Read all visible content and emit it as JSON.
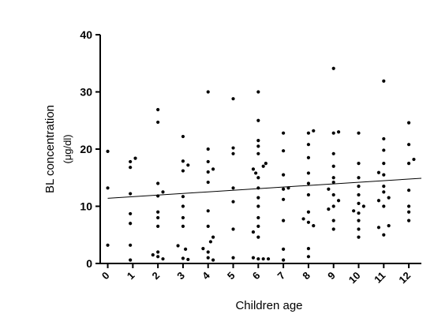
{
  "chart_data": {
    "type": "scatter",
    "title": "",
    "xlabel": "Children age",
    "ylabel": "BL concentration",
    "ylabel_unit": "(μg/dl)",
    "xlim": [
      -0.3,
      12.5
    ],
    "ylim": [
      0,
      40
    ],
    "x_ticks": [
      0,
      1,
      2,
      3,
      4,
      5,
      6,
      7,
      8,
      9,
      10,
      11,
      12
    ],
    "y_ticks": [
      0,
      10,
      20,
      30,
      40
    ],
    "grid": false,
    "legend": "none",
    "colors": {
      "points": "#000000",
      "line": "#000000",
      "axes": "#000000"
    },
    "trendline": {
      "x": [
        0,
        12.5
      ],
      "y": [
        11.4,
        14.9
      ]
    },
    "points": [
      {
        "x": 0,
        "y": 19.6
      },
      {
        "x": 0,
        "y": 13.2
      },
      {
        "x": 0,
        "y": 3.2
      },
      {
        "x": 0.9,
        "y": 17.8
      },
      {
        "x": 0.9,
        "y": 16.8
      },
      {
        "x": 1.1,
        "y": 18.4
      },
      {
        "x": 0.9,
        "y": 12.2
      },
      {
        "x": 0.9,
        "y": 8.7
      },
      {
        "x": 0.9,
        "y": 7.0
      },
      {
        "x": 0.9,
        "y": 3.2
      },
      {
        "x": 0.9,
        "y": 0.6
      },
      {
        "x": 2.0,
        "y": 26.9
      },
      {
        "x": 2.0,
        "y": 24.7
      },
      {
        "x": 2.0,
        "y": 14.0
      },
      {
        "x": 2.2,
        "y": 12.5
      },
      {
        "x": 2.0,
        "y": 11.8
      },
      {
        "x": 2.0,
        "y": 9.0
      },
      {
        "x": 2.0,
        "y": 8.0
      },
      {
        "x": 2.0,
        "y": 6.5
      },
      {
        "x": 2.0,
        "y": 2.0
      },
      {
        "x": 2.0,
        "y": 1.2
      },
      {
        "x": 1.8,
        "y": 1.5
      },
      {
        "x": 2.2,
        "y": 0.8
      },
      {
        "x": 3.0,
        "y": 22.2
      },
      {
        "x": 3.0,
        "y": 17.9
      },
      {
        "x": 3.0,
        "y": 16.2
      },
      {
        "x": 3.2,
        "y": 17.2
      },
      {
        "x": 3.0,
        "y": 11.7
      },
      {
        "x": 3.0,
        "y": 10.0
      },
      {
        "x": 3.0,
        "y": 8.0
      },
      {
        "x": 3.0,
        "y": 6.5
      },
      {
        "x": 2.8,
        "y": 3.1
      },
      {
        "x": 3.1,
        "y": 2.5
      },
      {
        "x": 3.0,
        "y": 0.9
      },
      {
        "x": 3.2,
        "y": 0.7
      },
      {
        "x": 4.0,
        "y": 30.0
      },
      {
        "x": 4.0,
        "y": 20.0
      },
      {
        "x": 4.0,
        "y": 17.8
      },
      {
        "x": 4.2,
        "y": 16.5
      },
      {
        "x": 4.0,
        "y": 16.0
      },
      {
        "x": 4.0,
        "y": 14.2
      },
      {
        "x": 4.0,
        "y": 9.2
      },
      {
        "x": 4.0,
        "y": 6.5
      },
      {
        "x": 3.8,
        "y": 2.6
      },
      {
        "x": 4.0,
        "y": 2.0
      },
      {
        "x": 4.1,
        "y": 3.8
      },
      {
        "x": 4.2,
        "y": 4.6
      },
      {
        "x": 4.0,
        "y": 1.0
      },
      {
        "x": 4.2,
        "y": 0.6
      },
      {
        "x": 5.0,
        "y": 28.8
      },
      {
        "x": 5.0,
        "y": 20.2
      },
      {
        "x": 5.0,
        "y": 19.2
      },
      {
        "x": 5.0,
        "y": 13.2
      },
      {
        "x": 5.0,
        "y": 10.8
      },
      {
        "x": 5.0,
        "y": 6.0
      },
      {
        "x": 5.0,
        "y": 1.0
      },
      {
        "x": 6.0,
        "y": 30.0
      },
      {
        "x": 6.0,
        "y": 25.0
      },
      {
        "x": 6.0,
        "y": 21.5
      },
      {
        "x": 6.0,
        "y": 20.5
      },
      {
        "x": 6.0,
        "y": 19.2
      },
      {
        "x": 6.3,
        "y": 17.5
      },
      {
        "x": 6.2,
        "y": 17.0
      },
      {
        "x": 5.8,
        "y": 16.5
      },
      {
        "x": 5.9,
        "y": 15.8
      },
      {
        "x": 6.0,
        "y": 15.0
      },
      {
        "x": 6.0,
        "y": 13.2
      },
      {
        "x": 6.0,
        "y": 11.5
      },
      {
        "x": 6.0,
        "y": 10.0
      },
      {
        "x": 6.0,
        "y": 8.0
      },
      {
        "x": 6.0,
        "y": 6.5
      },
      {
        "x": 5.8,
        "y": 5.5
      },
      {
        "x": 6.0,
        "y": 4.6
      },
      {
        "x": 5.8,
        "y": 1.0
      },
      {
        "x": 6.0,
        "y": 0.8
      },
      {
        "x": 6.2,
        "y": 0.8
      },
      {
        "x": 6.4,
        "y": 0.8
      },
      {
        "x": 7.0,
        "y": 22.8
      },
      {
        "x": 7.0,
        "y": 19.7
      },
      {
        "x": 7.0,
        "y": 15.5
      },
      {
        "x": 7.0,
        "y": 13.0
      },
      {
        "x": 7.2,
        "y": 13.2
      },
      {
        "x": 7.0,
        "y": 11.2
      },
      {
        "x": 7.0,
        "y": 7.5
      },
      {
        "x": 7.0,
        "y": 2.5
      },
      {
        "x": 7.0,
        "y": 0.6
      },
      {
        "x": 8.0,
        "y": 22.8
      },
      {
        "x": 8.2,
        "y": 23.2
      },
      {
        "x": 8.0,
        "y": 20.8
      },
      {
        "x": 8.0,
        "y": 18.5
      },
      {
        "x": 8.0,
        "y": 15.8
      },
      {
        "x": 8.0,
        "y": 14.0
      },
      {
        "x": 8.0,
        "y": 12.0
      },
      {
        "x": 8.0,
        "y": 9.0
      },
      {
        "x": 7.8,
        "y": 7.8
      },
      {
        "x": 8.0,
        "y": 7.2
      },
      {
        "x": 8.2,
        "y": 6.6
      },
      {
        "x": 8.0,
        "y": 2.6
      },
      {
        "x": 8.0,
        "y": 1.2
      },
      {
        "x": 9.0,
        "y": 34.1
      },
      {
        "x": 9.0,
        "y": 22.8
      },
      {
        "x": 9.2,
        "y": 23.0
      },
      {
        "x": 9.0,
        "y": 19.2
      },
      {
        "x": 9.0,
        "y": 17.0
      },
      {
        "x": 9.0,
        "y": 15.0
      },
      {
        "x": 9.0,
        "y": 14.2
      },
      {
        "x": 8.8,
        "y": 13.0
      },
      {
        "x": 9.0,
        "y": 12.0
      },
      {
        "x": 9.2,
        "y": 11.0
      },
      {
        "x": 9.0,
        "y": 10.0
      },
      {
        "x": 8.8,
        "y": 9.5
      },
      {
        "x": 9.0,
        "y": 7.5
      },
      {
        "x": 9.0,
        "y": 6.0
      },
      {
        "x": 10.0,
        "y": 22.8
      },
      {
        "x": 10.0,
        "y": 17.5
      },
      {
        "x": 10.0,
        "y": 15.0
      },
      {
        "x": 10.0,
        "y": 13.5
      },
      {
        "x": 10.0,
        "y": 12.0
      },
      {
        "x": 10.0,
        "y": 10.5
      },
      {
        "x": 10.2,
        "y": 10.0
      },
      {
        "x": 9.8,
        "y": 9.2
      },
      {
        "x": 10.0,
        "y": 8.8
      },
      {
        "x": 10.0,
        "y": 7.5
      },
      {
        "x": 10.0,
        "y": 6.0
      },
      {
        "x": 10.0,
        "y": 4.6
      },
      {
        "x": 11.0,
        "y": 31.9
      },
      {
        "x": 11.0,
        "y": 21.8
      },
      {
        "x": 11.0,
        "y": 19.8
      },
      {
        "x": 11.0,
        "y": 17.5
      },
      {
        "x": 10.8,
        "y": 15.9
      },
      {
        "x": 11.0,
        "y": 15.5
      },
      {
        "x": 11.0,
        "y": 13.5
      },
      {
        "x": 11.0,
        "y": 12.5
      },
      {
        "x": 11.2,
        "y": 11.5
      },
      {
        "x": 10.8,
        "y": 11.0
      },
      {
        "x": 11.0,
        "y": 10.0
      },
      {
        "x": 11.2,
        "y": 6.6
      },
      {
        "x": 10.8,
        "y": 6.3
      },
      {
        "x": 11.0,
        "y": 5.0
      },
      {
        "x": 12.0,
        "y": 24.6
      },
      {
        "x": 12.0,
        "y": 20.8
      },
      {
        "x": 12.2,
        "y": 18.2
      },
      {
        "x": 12.0,
        "y": 17.5
      },
      {
        "x": 12.0,
        "y": 12.8
      },
      {
        "x": 12.0,
        "y": 10.0
      },
      {
        "x": 12.0,
        "y": 9.0
      },
      {
        "x": 12.0,
        "y": 7.5
      }
    ]
  }
}
